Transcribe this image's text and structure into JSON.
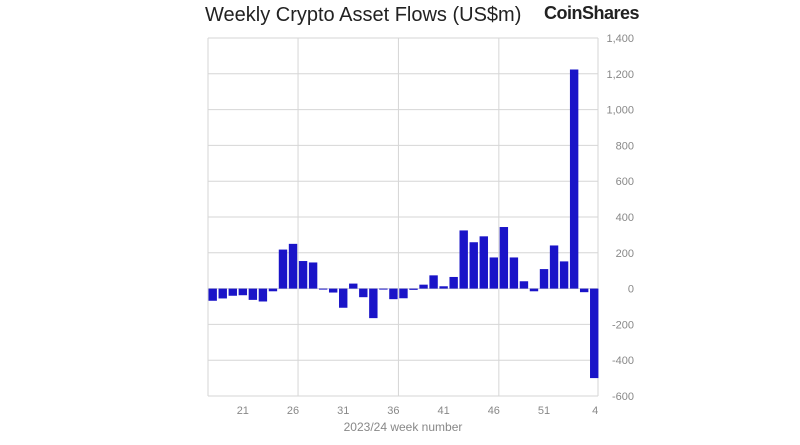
{
  "logo_text": "CoinShares",
  "chart_data": {
    "type": "bar",
    "title": "Weekly Crypto Asset Flows (US$m)",
    "xlabel": "2023/24 week number",
    "ylabel": "",
    "ylim": [
      -600,
      1400
    ],
    "yticks": [
      -600,
      -400,
      -200,
      0,
      200,
      400,
      600,
      800,
      1000,
      1200,
      1400
    ],
    "ytick_labels": [
      "-600",
      "-400",
      "-200",
      "0",
      "200",
      "400",
      "600",
      "800",
      "1,000",
      "1,200",
      "1,400"
    ],
    "xtick_labels": [
      {
        "week": "21",
        "index": 3
      },
      {
        "week": "26",
        "index": 8
      },
      {
        "week": "31",
        "index": 13
      },
      {
        "week": "36",
        "index": 18
      },
      {
        "week": "41",
        "index": 23
      },
      {
        "week": "46",
        "index": 28
      },
      {
        "week": "51",
        "index": 33
      },
      {
        "week": "4",
        "index": 38
      }
    ],
    "categories": [
      "18",
      "19",
      "20",
      "21",
      "22",
      "23",
      "24",
      "25",
      "26",
      "27",
      "28",
      "29",
      "30",
      "31",
      "32",
      "33",
      "34",
      "35",
      "36",
      "37",
      "38",
      "39",
      "40",
      "41",
      "42",
      "43",
      "44",
      "45",
      "46",
      "47",
      "48",
      "49",
      "50",
      "51",
      "52",
      "1",
      "2",
      "3",
      "4"
    ],
    "values": [
      -68,
      -55,
      -40,
      -37,
      -63,
      -72,
      -15,
      218,
      250,
      154,
      146,
      -3,
      -22,
      -107,
      28,
      -48,
      -165,
      -3,
      -59,
      -54,
      -7,
      22,
      74,
      13,
      65,
      325,
      259,
      292,
      174,
      344,
      174,
      41,
      -15,
      109,
      241,
      152,
      1224,
      -20,
      -500
    ],
    "grid": true,
    "bar_color": "#1a14c8",
    "legend": "none"
  }
}
